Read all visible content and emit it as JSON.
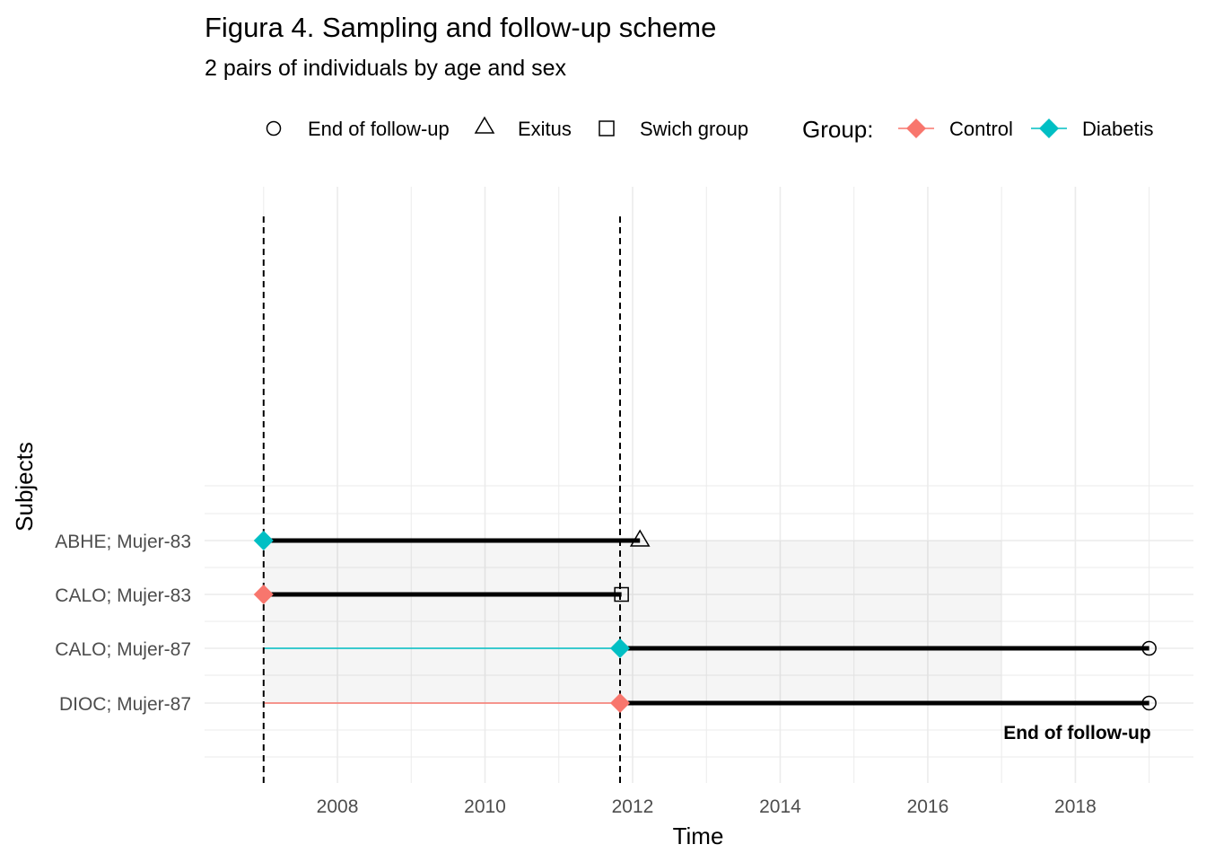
{
  "chart_data": {
    "type": "timeline",
    "title": "Figura 4. Sampling and follow-up scheme",
    "subtitle": "2 pairs of individuals by age and sex",
    "xlabel": "Time",
    "ylabel": "Subjects",
    "xlim": [
      2006.2,
      2019.6
    ],
    "x_ticks": [
      2008,
      2010,
      2012,
      2014,
      2016,
      2018
    ],
    "x_tick_labels": [
      "2008",
      "2010",
      "2012",
      "2014",
      "2016",
      "2018"
    ],
    "grid": true,
    "legend": {
      "position": "top",
      "shapes": [
        {
          "label": "End of follow-up",
          "shape": "circle"
        },
        {
          "label": "Exitus",
          "shape": "triangle"
        },
        {
          "label": "Swich group",
          "shape": "square"
        }
      ],
      "group_title": "Group:",
      "groups": [
        {
          "label": "Control",
          "color": "#F8766D"
        },
        {
          "label": "Diabetis",
          "color": "#00BFC4"
        }
      ]
    },
    "vlines": [
      2007.0,
      2011.83
    ],
    "shaded_band": {
      "x": [
        2007.0,
        2017.0
      ],
      "subjects_from": "ABHE; Mujer-83",
      "subjects_to": "DIOC; Mujer-87"
    },
    "subjects": [
      {
        "label": "ABHE; Mujer-83",
        "group": "Diabetis",
        "thin": null,
        "start": 2007.0,
        "end": 2012.1,
        "end_shape": "triangle"
      },
      {
        "label": "CALO; Mujer-83",
        "group": "Control",
        "thin": null,
        "start": 2007.0,
        "end": 2011.85,
        "end_shape": "square"
      },
      {
        "label": "CALO; Mujer-87",
        "group": "Diabetis",
        "thin": [
          2007.0,
          2011.83
        ],
        "start": 2011.83,
        "end": 2019.0,
        "end_shape": "circle"
      },
      {
        "label": "DIOC; Mujer-87",
        "group": "Control",
        "thin": [
          2007.0,
          2011.83
        ],
        "start": 2011.83,
        "end": 2019.0,
        "end_shape": "circle"
      }
    ],
    "annotation": {
      "text": "End of follow-up",
      "x": 2019.0,
      "subject": "DIOC; Mujer-87"
    }
  }
}
